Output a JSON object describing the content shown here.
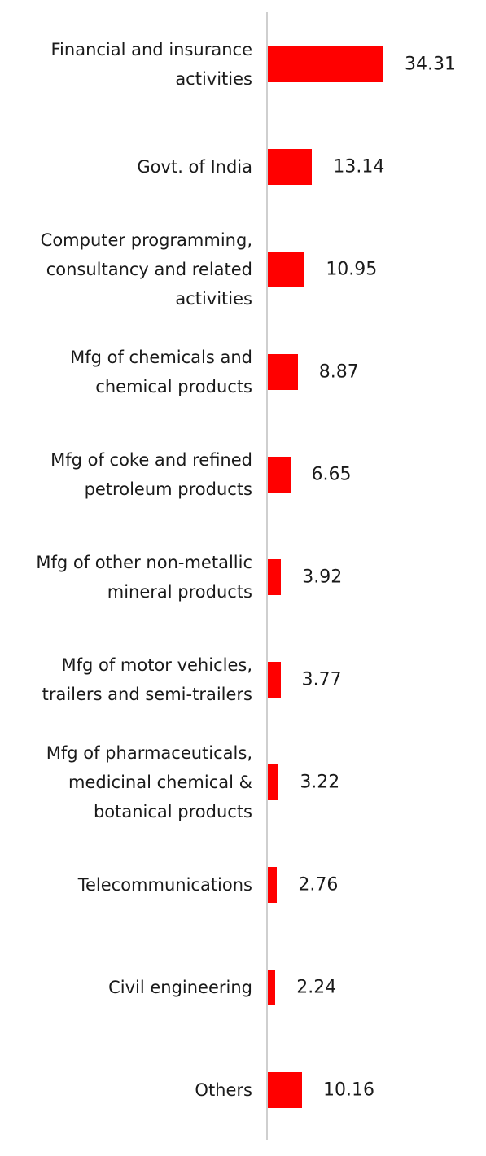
{
  "chart_data": {
    "type": "bar",
    "orientation": "horizontal",
    "categories": [
      "Financial and insurance\nactivities",
      "Govt. of India",
      "Computer programming,\nconsultancy and related\nactivities",
      "Mfg of chemicals and\nchemical products",
      "Mfg of coke and refined\npetroleum products",
      "Mfg of other non-metallic\nmineral products",
      "Mfg of motor vehicles,\ntrailers and semi-trailers",
      "Mfg of pharmaceuticals,\nmedicinal chemical &\nbotanical products",
      "Telecommunications",
      "Civil engineering",
      "Others"
    ],
    "values": [
      34.31,
      13.14,
      10.95,
      8.87,
      6.65,
      3.92,
      3.77,
      3.22,
      2.76,
      2.24,
      10.16
    ],
    "color": "#ff0000"
  }
}
